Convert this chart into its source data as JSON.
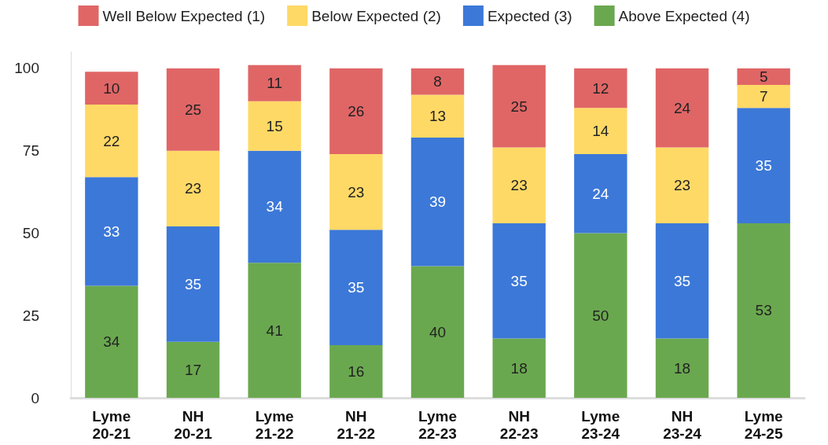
{
  "chart_data": {
    "type": "bar",
    "stacked": true,
    "categories": [
      "Lyme 20-21",
      "NH 20-21",
      "Lyme 21-22",
      "NH 21-22",
      "Lyme 22-23",
      "NH 22-23",
      "Lyme 23-24",
      "NH 23-24",
      "Lyme 24-25"
    ],
    "series": [
      {
        "name": "Above Expected (4)",
        "color": "#6aa84f",
        "values": [
          34,
          17,
          41,
          16,
          40,
          18,
          50,
          18,
          53
        ]
      },
      {
        "name": "Expected (3)",
        "color": "#3c78d8",
        "values": [
          33,
          35,
          34,
          35,
          39,
          35,
          24,
          35,
          35
        ]
      },
      {
        "name": "Below Expected (2)",
        "color": "#ffd966",
        "values": [
          22,
          23,
          15,
          23,
          13,
          23,
          14,
          23,
          7
        ]
      },
      {
        "name": "Well Below Expected (1)",
        "color": "#e06666",
        "values": [
          10,
          25,
          11,
          26,
          8,
          25,
          12,
          24,
          5
        ]
      }
    ],
    "ylim": [
      0,
      105
    ],
    "yticks": [
      0,
      25,
      50,
      75,
      100
    ],
    "grid": false,
    "legend": "top",
    "data_labels": true
  }
}
